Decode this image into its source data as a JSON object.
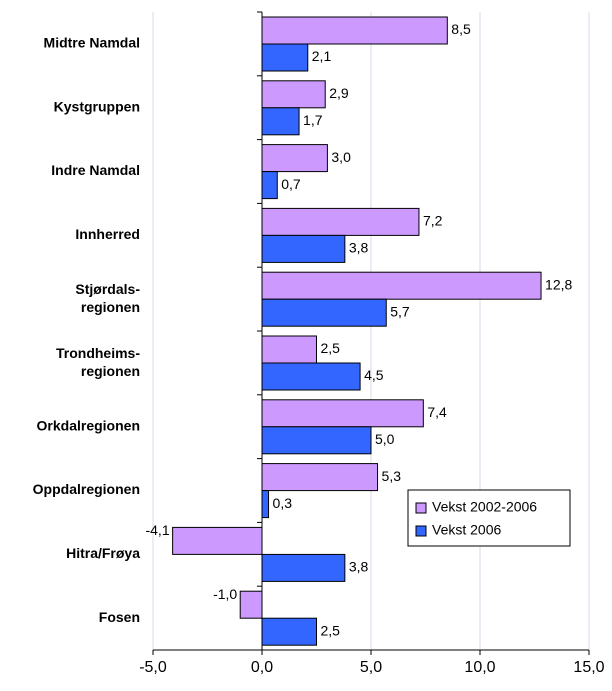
{
  "chart_data": {
    "type": "bar",
    "orientation": "horizontal",
    "categories": [
      "Midtre Namdal",
      "Kystgruppen",
      "Indre Namdal",
      "Innherred",
      "Stjørdals-\nregionen",
      "Trondheims-\nregionen",
      "Orkdalregionen",
      "Oppdalregionen",
      "Hitra/Frøya",
      "Fosen"
    ],
    "series": [
      {
        "name": "Vekst 2002-2006",
        "color": "#cc99ff",
        "values": [
          8.5,
          2.9,
          3.0,
          7.2,
          12.8,
          2.5,
          7.4,
          5.3,
          -4.1,
          -1.0
        ],
        "value_labels": [
          "8,5",
          "2,9",
          "3,0",
          "7,2",
          "12,8",
          "2,5",
          "7,4",
          "5,3",
          "-4,1",
          "-1,0"
        ]
      },
      {
        "name": "Vekst 2006",
        "color": "#3366ff",
        "values": [
          2.1,
          1.7,
          0.7,
          3.8,
          5.7,
          4.5,
          5.0,
          0.3,
          3.8,
          2.5
        ],
        "value_labels": [
          "2,1",
          "1,7",
          "0,7",
          "3,8",
          "5,7",
          "4,5",
          "5,0",
          "0,3",
          "3,8",
          "2,5"
        ]
      }
    ],
    "xlim": [
      -5,
      15
    ],
    "xticks": [
      {
        "value": -5,
        "label": "-5,0"
      },
      {
        "value": 0,
        "label": "0,0"
      },
      {
        "value": 5,
        "label": "5,0"
      },
      {
        "value": 10,
        "label": "10,0"
      },
      {
        "value": 15,
        "label": "15,0"
      }
    ],
    "grid": true,
    "legend_position": "lower right"
  }
}
